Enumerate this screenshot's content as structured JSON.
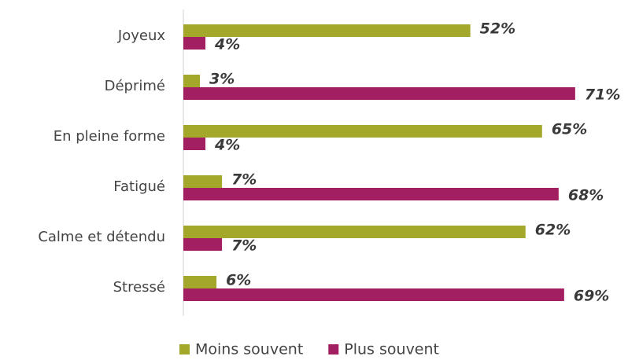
{
  "chart_data": {
    "type": "hbar",
    "categories": [
      "Joyeux",
      "Déprimé",
      "En pleine forme",
      "Fatigué",
      "Calme et détendu",
      "Stressé"
    ],
    "series": [
      {
        "name": "Moins souvent",
        "color": "#a3a82a",
        "values": [
          52,
          3,
          65,
          7,
          62,
          6
        ],
        "value_labels": [
          "52%",
          "3%",
          "65%",
          "7%",
          "62%",
          "6%"
        ]
      },
      {
        "name": "Plus souvent",
        "color": "#a21f62",
        "values": [
          4,
          71,
          4,
          68,
          7,
          69
        ],
        "value_labels": [
          "4%",
          "71%",
          "4%",
          "68%",
          "7%",
          "69%"
        ]
      }
    ],
    "xlim": [
      0,
      80
    ],
    "legend": "bottom"
  }
}
